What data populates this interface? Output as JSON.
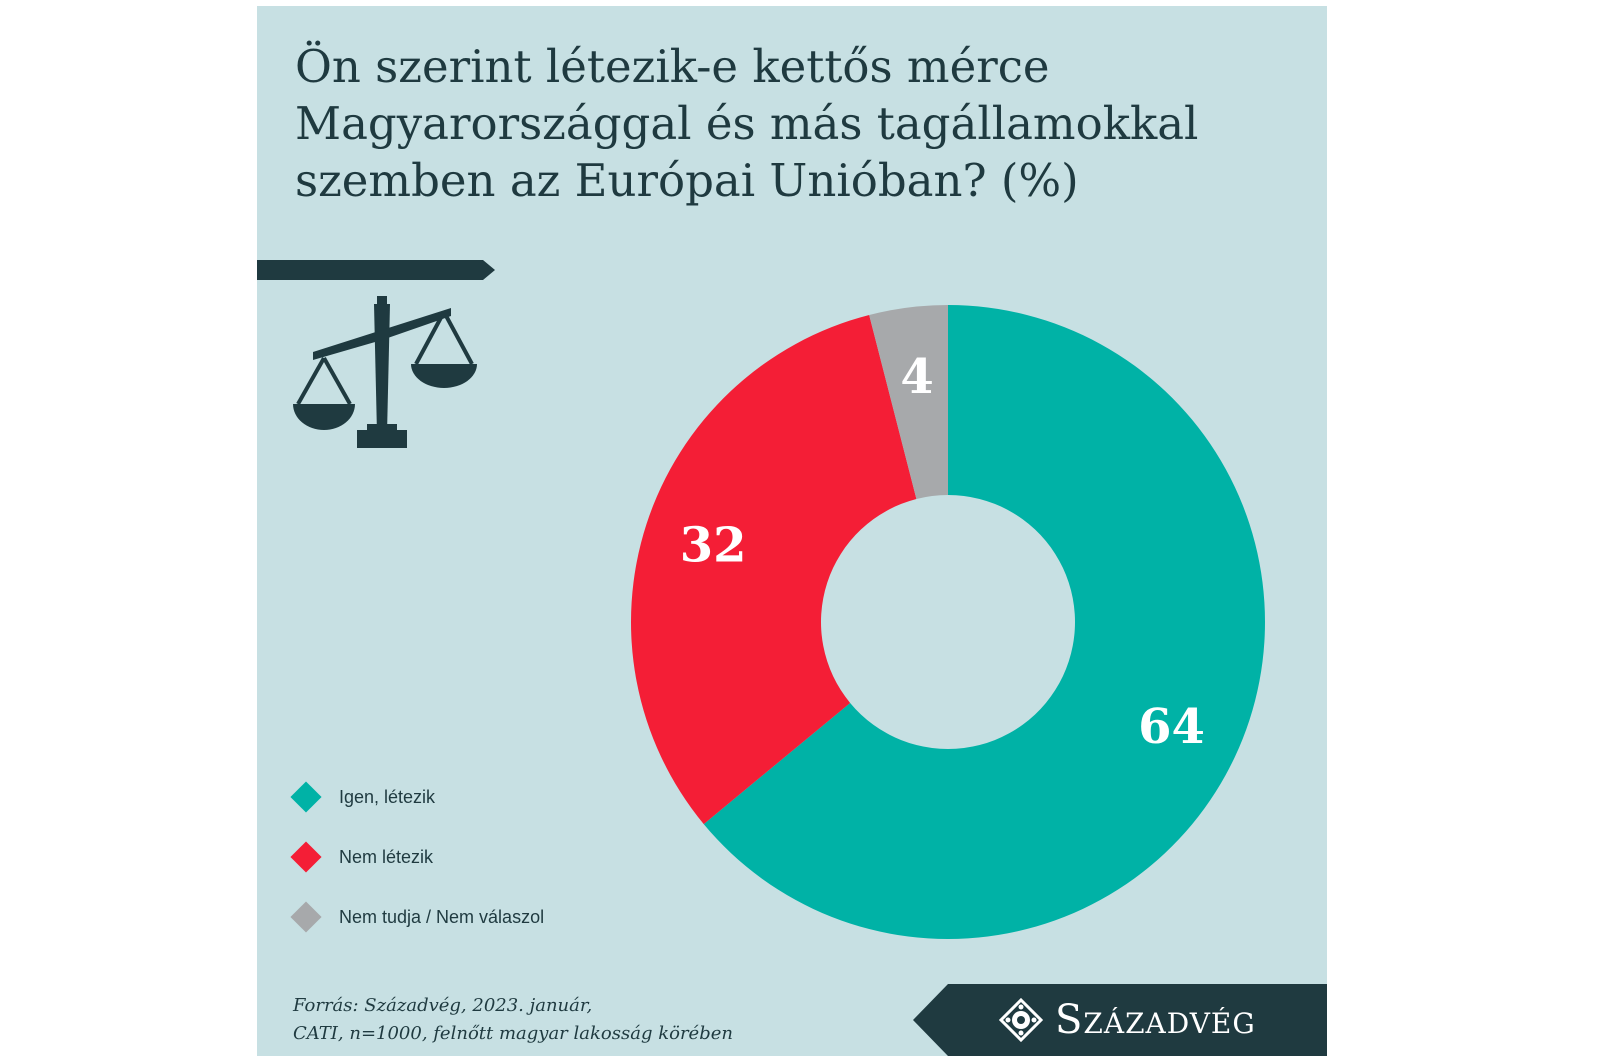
{
  "chart_data": {
    "type": "pie",
    "title": [
      "Ön szerint létezik-e kettős mérce",
      "Magyarországgal és más tagállamokkal",
      "szemben az Európai Unióban? (%)"
    ],
    "slices": [
      {
        "label": "Igen, létezik",
        "value": 64,
        "value_label": "64",
        "color": "#00b2a6"
      },
      {
        "label": "Nem létezik",
        "value": 32,
        "value_label": "32",
        "color": "#f41e36"
      },
      {
        "label": "Nem tudja / Nem válaszol",
        "value": 4,
        "value_label": "4",
        "color": "#a7a9ab"
      }
    ],
    "start_angle_deg": 0,
    "direction": "clockwise",
    "donut": true,
    "legend_position": "bottom-left"
  },
  "source": [
    "Forrás: Századvég, 2023. január,",
    "CATI, n=1000, felnőtt magyar lakosság körében"
  ],
  "brand": {
    "name": "Századvég",
    "color": "#1f3a40"
  },
  "icons": {
    "scales": "balance-scale-icon",
    "logo": "szazadveg-logo-icon"
  },
  "colors": {
    "background": "#c7e0e3",
    "text": "#1f3a40"
  }
}
